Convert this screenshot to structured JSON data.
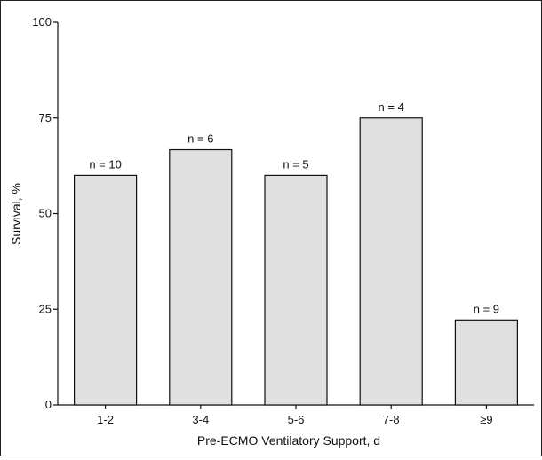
{
  "chart_data": {
    "type": "bar",
    "title": "",
    "xlabel": "Pre-ECMO Ventilatory Support, d",
    "ylabel": "Survival, %",
    "ylim": [
      0,
      100
    ],
    "yticks": [
      0,
      25,
      50,
      75,
      100
    ],
    "grid": false,
    "categories": [
      "1-2",
      "3-4",
      "5-6",
      "7-8",
      "≥9"
    ],
    "values": [
      60,
      66.7,
      60,
      75,
      22.2
    ],
    "data_labels": [
      "n = 10",
      "n = 6",
      "n = 5",
      "n = 4",
      "n = 9"
    ],
    "colors": {
      "bar_fill": "#e0e0e0",
      "bar_stroke": "#111111",
      "axis": "#111111"
    }
  }
}
